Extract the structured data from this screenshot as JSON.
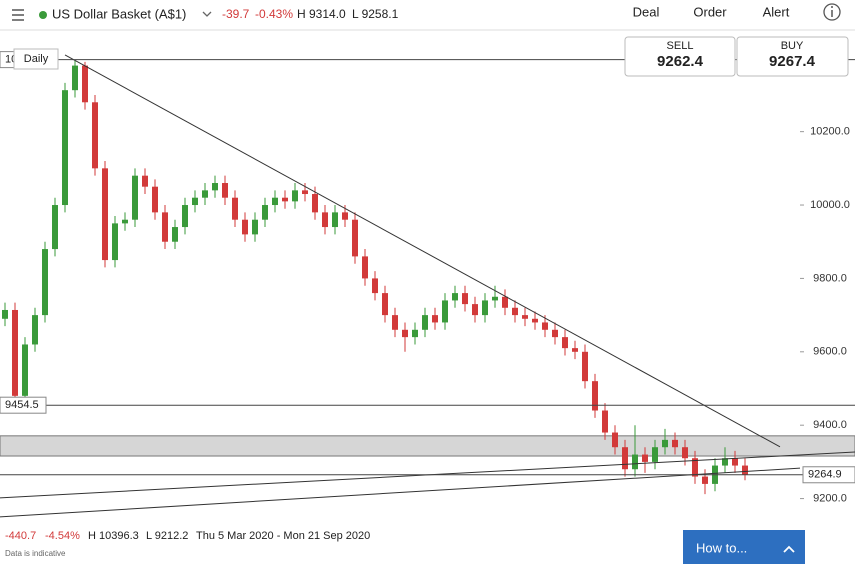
{
  "header": {
    "title": "US Dollar Basket (A$1)",
    "change": -39.7,
    "change_pct": "-0.43%",
    "high": "H 9314.0",
    "low": "L 9258.1",
    "menu": [
      "Deal",
      "Order",
      "Alert"
    ]
  },
  "quote": {
    "sell_label": "SELL",
    "sell": 9262.4,
    "buy_label": "BUY",
    "buy": 9267.4
  },
  "chart_data": {
    "type": "candlestick",
    "interval": "Daily",
    "open": [
      9690,
      9714,
      9480,
      9620,
      9700,
      9880,
      10000,
      10313,
      10380,
      10280,
      10100,
      9850,
      9950,
      9960,
      10080,
      10050,
      9980,
      9900,
      9940,
      10000,
      10020,
      10040,
      10060,
      10020,
      9960,
      9920,
      9960,
      10000,
      10020,
      10010,
      10040,
      10030,
      9980,
      9940,
      9980,
      9960,
      9860,
      9800,
      9760,
      9700,
      9660,
      9640,
      9660,
      9700,
      9680,
      9740,
      9760,
      9730,
      9700,
      9740,
      9750,
      9720,
      9700,
      9690,
      9680,
      9660,
      9640,
      9610,
      9600,
      9520,
      9440,
      9380,
      9340,
      9280,
      9320,
      9300,
      9340,
      9360,
      9340,
      9310,
      9260,
      9240,
      9290,
      9310,
      9290
    ],
    "high": [
      9734,
      9734,
      9640,
      9720,
      9900,
      10020,
      10333,
      10396.3,
      10390,
      10300,
      10120,
      9970,
      9980,
      10100,
      10100,
      10070,
      10000,
      9960,
      10020,
      10040,
      10060,
      10080,
      10080,
      10040,
      9980,
      9980,
      10020,
      10040,
      10040,
      10060,
      10060,
      10050,
      10000,
      10000,
      10000,
      9980,
      9880,
      9820,
      9780,
      9720,
      9680,
      9680,
      9720,
      9720,
      9760,
      9780,
      9780,
      9750,
      9760,
      9780,
      9770,
      9740,
      9720,
      9710,
      9700,
      9680,
      9660,
      9630,
      9620,
      9540,
      9460,
      9400,
      9360,
      9400,
      9340,
      9360,
      9390,
      9380,
      9360,
      9330,
      9280,
      9310,
      9340,
      9330,
      9310
    ],
    "low": [
      9670,
      9460,
      9460,
      9600,
      9680,
      9860,
      9980,
      10293,
      10260,
      10080,
      9830,
      9830,
      9930,
      9940,
      10030,
      9960,
      9880,
      9880,
      9920,
      9980,
      10000,
      10020,
      10000,
      9940,
      9900,
      9900,
      9940,
      9980,
      9990,
      9990,
      10010,
      9960,
      9920,
      9920,
      9940,
      9840,
      9780,
      9740,
      9680,
      9640,
      9600,
      9620,
      9640,
      9660,
      9660,
      9720,
      9710,
      9680,
      9680,
      9720,
      9700,
      9680,
      9670,
      9660,
      9640,
      9620,
      9590,
      9580,
      9500,
      9420,
      9360,
      9320,
      9260,
      9260,
      9270,
      9280,
      9320,
      9320,
      9290,
      9240,
      9212.2,
      9220,
      9270,
      9270,
      9250
    ],
    "close": [
      9714,
      9480,
      9620,
      9700,
      9880,
      10000,
      10313,
      10380,
      10280,
      10100,
      9850,
      9950,
      9960,
      10080,
      10050,
      9980,
      9900,
      9940,
      10000,
      10020,
      10040,
      10060,
      10020,
      9960,
      9920,
      9960,
      10000,
      10020,
      10010,
      10040,
      10030,
      9980,
      9940,
      9980,
      9960,
      9860,
      9800,
      9760,
      9700,
      9660,
      9640,
      9660,
      9700,
      9680,
      9740,
      9760,
      9730,
      9700,
      9740,
      9750,
      9720,
      9700,
      9690,
      9680,
      9660,
      9640,
      9610,
      9600,
      9520,
      9440,
      9380,
      9340,
      9280,
      9320,
      9300,
      9340,
      9360,
      9340,
      9310,
      9260,
      9240,
      9290,
      9310,
      9290,
      9264.9
    ],
    "up_color": "#3a9a3a",
    "down_color": "#d23a3a",
    "ylim": [
      9128,
      10477
    ],
    "yticks": [
      {
        "value": 9200,
        "label": "9200.0"
      },
      {
        "value": 9400,
        "label": "9400.0"
      },
      {
        "value": 9600,
        "label": "9600.0"
      },
      {
        "value": 9800,
        "label": "9800.0"
      },
      {
        "value": 10000,
        "label": "10000.0"
      },
      {
        "value": 10200,
        "label": "10200.0"
      }
    ],
    "levels": [
      10396.3,
      9454.5,
      9264.9
    ],
    "zones": [
      {
        "from": 9316,
        "to": 9371
      }
    ],
    "trend_lines": [
      {
        "start": [
          6,
          10409
        ],
        "end": [
          77.5,
          9341
        ]
      },
      {
        "start": [
          -0.5,
          9202
        ],
        "end": [
          85,
          9327
        ]
      },
      {
        "start": [
          -0.5,
          9150
        ],
        "end": [
          79.5,
          9283
        ]
      }
    ]
  },
  "footer": {
    "change": -440.7,
    "change_pct": "-4.54%",
    "high": "H 10396.3",
    "low": "L 9212.2",
    "range": "Thu 5 Mar 2020 - Mon 21 Sep 2020",
    "note": "Data is indicative",
    "help": "How to..."
  }
}
